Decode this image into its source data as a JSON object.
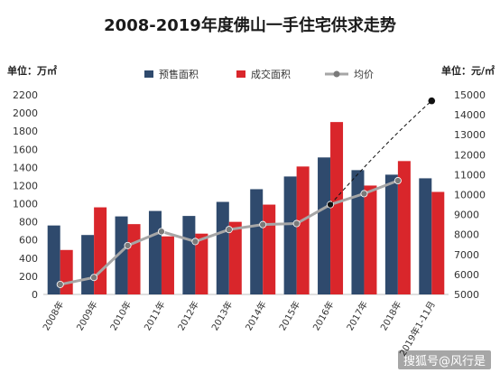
{
  "title": "2008-2019年度佛山一手住宅供求走势",
  "unit_left": "单位：万㎡",
  "unit_right": "单位：元/㎡",
  "watermark": "搜狐号@风行是",
  "colors": {
    "presale": "#2f4a6d",
    "transaction": "#d9262b",
    "price_line": "#a6a6a6",
    "price_marker": "#7a7a7a",
    "trend": "#111111"
  },
  "chart_data": {
    "type": "bar",
    "title": "2008-2019年度佛山一手住宅供求走势",
    "categories": [
      "2008年",
      "2009年",
      "2010年",
      "2011年",
      "2012年",
      "2013年",
      "2014年",
      "2015年",
      "2016年",
      "2017年",
      "2018年",
      "2019年1-11月"
    ],
    "series": [
      {
        "name": "预售面积",
        "type": "bar",
        "axis": "left",
        "values": [
          760,
          655,
          860,
          920,
          865,
          1020,
          1160,
          1300,
          1510,
          1370,
          1320,
          1280
        ]
      },
      {
        "name": "成交面积",
        "type": "bar",
        "axis": "left",
        "values": [
          490,
          960,
          775,
          640,
          670,
          800,
          990,
          1410,
          1900,
          1200,
          1470,
          1130
        ]
      },
      {
        "name": "均价",
        "type": "line",
        "axis": "right",
        "values": [
          5500,
          5850,
          7450,
          8150,
          7650,
          8250,
          8500,
          8550,
          9500,
          10050,
          10700,
          14700
        ]
      }
    ],
    "trend_line": {
      "from_index": 8,
      "to_index": 11
    },
    "y_left": {
      "min": 0,
      "max": 2200,
      "step": 200,
      "ticks": [
        "0",
        "200",
        "400",
        "600",
        "800",
        "1000",
        "1200",
        "1400",
        "1600",
        "1800",
        "2000",
        "2200"
      ]
    },
    "y_right": {
      "min": 5000,
      "max": 15000,
      "step": 1000,
      "ticks": [
        "5000",
        "6000",
        "7000",
        "8000",
        "9000",
        "10000",
        "11000",
        "12000",
        "13000",
        "14000",
        "15000"
      ]
    },
    "legend_position": "top-center",
    "grid": false
  }
}
